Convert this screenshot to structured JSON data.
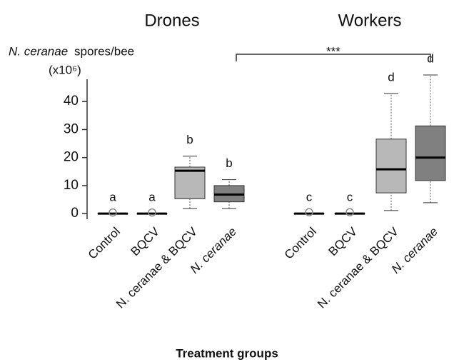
{
  "chart_data": {
    "type": "box",
    "groups": [
      "Drones",
      "Workers"
    ],
    "y_label_species": "N. ceranae",
    "y_label_rest": "spores/bee",
    "y_unit": "(x10⁶)",
    "x_label": "Treatment groups",
    "significance": "***",
    "categories": [
      "Control",
      "BQCV",
      "N. ceranae & BQCV",
      "N. ceranae",
      "Control",
      "BQCV",
      "N. ceranae & BQCV",
      "N. ceranae"
    ],
    "min": [
      0,
      0,
      1.8,
      1.8,
      0,
      0,
      1.1,
      3.9
    ],
    "q1": [
      0,
      0,
      5.3,
      4.2,
      0,
      0,
      7.4,
      11.8
    ],
    "median": [
      0,
      0,
      15.3,
      6.8,
      0,
      0,
      15.8,
      20
    ],
    "q3": [
      0,
      0,
      16.6,
      10,
      0,
      0,
      26.6,
      31.3
    ],
    "max": [
      0,
      0,
      20.5,
      12.1,
      0,
      0,
      42.9,
      49.5
    ],
    "outliers": [
      0.4,
      0.4,
      null,
      null,
      0.5,
      0.5,
      null,
      null
    ],
    "letters": [
      "a",
      "a",
      "b",
      "b",
      "c",
      "c",
      "d",
      "d"
    ],
    "colors": [
      "#d0d0d0",
      "#d0d0d0",
      "#b8b8b8",
      "#808080",
      "#d0d0d0",
      "#d0d0d0",
      "#b8b8b8",
      "#808080"
    ],
    "ylim": [
      -2,
      50
    ],
    "yticks": [
      0,
      10,
      20,
      30,
      40
    ]
  }
}
